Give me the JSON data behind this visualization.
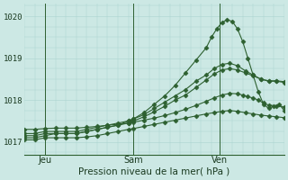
{
  "xlabel": "Pression niveau de la mer( hPa )",
  "background_color": "#cce8e4",
  "grid_color": "#aad4cf",
  "line_color": "#2d6030",
  "ylim": [
    1016.7,
    1020.3
  ],
  "xlim": [
    0.0,
    1.0
  ],
  "yticks": [
    1017,
    1018,
    1019,
    1020
  ],
  "ytick_labels": [
    "1017",
    "1018",
    "1019",
    "1020"
  ],
  "xtick_positions": [
    0.08,
    0.42,
    0.75
  ],
  "xtick_labels": [
    "Jeu",
    "Sam",
    "Ven"
  ],
  "vline_positions": [
    0.08,
    0.42,
    0.75
  ],
  "series": [
    {
      "x": [
        0.0,
        0.04,
        0.08,
        0.12,
        0.16,
        0.2,
        0.24,
        0.28,
        0.32,
        0.36,
        0.4,
        0.42,
        0.46,
        0.5,
        0.54,
        0.58,
        0.62,
        0.66,
        0.7,
        0.72,
        0.74,
        0.76,
        0.78,
        0.8,
        0.82,
        0.84,
        0.86,
        0.88,
        0.9,
        0.92,
        0.94,
        0.96,
        0.98,
        1.0
      ],
      "y": [
        1017.1,
        1017.1,
        1017.15,
        1017.2,
        1017.2,
        1017.2,
        1017.25,
        1017.3,
        1017.35,
        1017.4,
        1017.5,
        1017.55,
        1017.7,
        1017.9,
        1018.1,
        1018.35,
        1018.65,
        1018.95,
        1019.25,
        1019.5,
        1019.7,
        1019.85,
        1019.92,
        1019.88,
        1019.7,
        1019.4,
        1019.0,
        1018.6,
        1018.2,
        1017.9,
        1017.8,
        1017.85,
        1017.9,
        1017.75
      ]
    },
    {
      "x": [
        0.0,
        0.04,
        0.08,
        0.12,
        0.16,
        0.2,
        0.24,
        0.28,
        0.32,
        0.36,
        0.4,
        0.42,
        0.46,
        0.5,
        0.54,
        0.58,
        0.62,
        0.66,
        0.7,
        0.73,
        0.76,
        0.79,
        0.82,
        0.85,
        0.88,
        0.91,
        0.94,
        0.97,
        1.0
      ],
      "y": [
        1017.2,
        1017.2,
        1017.25,
        1017.25,
        1017.25,
        1017.25,
        1017.3,
        1017.35,
        1017.4,
        1017.45,
        1017.5,
        1017.55,
        1017.65,
        1017.8,
        1017.95,
        1018.1,
        1018.25,
        1018.45,
        1018.6,
        1018.75,
        1018.85,
        1018.88,
        1018.82,
        1018.7,
        1018.6,
        1018.5,
        1018.45,
        1018.45,
        1018.42
      ]
    },
    {
      "x": [
        0.0,
        0.04,
        0.08,
        0.12,
        0.16,
        0.2,
        0.24,
        0.28,
        0.32,
        0.36,
        0.4,
        0.42,
        0.46,
        0.5,
        0.54,
        0.58,
        0.62,
        0.66,
        0.7,
        0.73,
        0.76,
        0.79,
        0.82,
        0.85,
        0.88,
        0.91,
        0.94,
        0.97,
        1.0
      ],
      "y": [
        1017.15,
        1017.15,
        1017.2,
        1017.2,
        1017.2,
        1017.2,
        1017.25,
        1017.3,
        1017.35,
        1017.4,
        1017.45,
        1017.5,
        1017.6,
        1017.72,
        1017.85,
        1018.0,
        1018.12,
        1018.3,
        1018.48,
        1018.62,
        1018.72,
        1018.75,
        1018.72,
        1018.65,
        1018.58,
        1018.5,
        1018.46,
        1018.46,
        1018.44
      ]
    },
    {
      "x": [
        0.0,
        0.04,
        0.08,
        0.12,
        0.16,
        0.2,
        0.24,
        0.28,
        0.32,
        0.36,
        0.4,
        0.42,
        0.46,
        0.5,
        0.54,
        0.58,
        0.62,
        0.66,
        0.7,
        0.73,
        0.76,
        0.79,
        0.82,
        0.84,
        0.86,
        0.88,
        0.9,
        0.92,
        0.94,
        0.97,
        1.0
      ],
      "y": [
        1017.3,
        1017.3,
        1017.32,
        1017.33,
        1017.33,
        1017.33,
        1017.35,
        1017.37,
        1017.4,
        1017.42,
        1017.45,
        1017.47,
        1017.52,
        1017.57,
        1017.63,
        1017.7,
        1017.78,
        1017.87,
        1017.97,
        1018.05,
        1018.12,
        1018.16,
        1018.15,
        1018.12,
        1018.08,
        1018.05,
        1018.0,
        1017.93,
        1017.88,
        1017.86,
        1017.84
      ]
    },
    {
      "x": [
        0.0,
        0.04,
        0.08,
        0.12,
        0.16,
        0.2,
        0.24,
        0.28,
        0.32,
        0.36,
        0.4,
        0.42,
        0.46,
        0.5,
        0.54,
        0.58,
        0.62,
        0.66,
        0.7,
        0.73,
        0.76,
        0.79,
        0.82,
        0.85,
        0.88,
        0.91,
        0.94,
        0.97,
        1.0
      ],
      "y": [
        1017.05,
        1017.05,
        1017.1,
        1017.1,
        1017.1,
        1017.1,
        1017.12,
        1017.15,
        1017.2,
        1017.25,
        1017.3,
        1017.32,
        1017.37,
        1017.42,
        1017.47,
        1017.52,
        1017.57,
        1017.62,
        1017.67,
        1017.7,
        1017.73,
        1017.75,
        1017.73,
        1017.7,
        1017.67,
        1017.64,
        1017.62,
        1017.6,
        1017.58
      ]
    }
  ]
}
